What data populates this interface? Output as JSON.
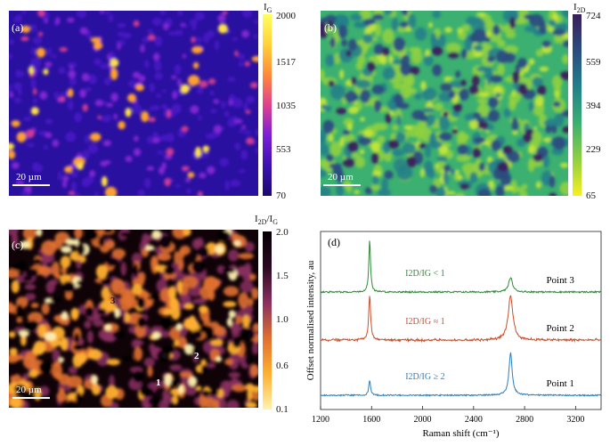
{
  "panels": {
    "a": {
      "label": "(a)",
      "scalebar": "20 µm",
      "cbar_title": "I",
      "cbar_sub": "G",
      "ticks": [
        "2000",
        "1517",
        "1035",
        "553",
        "70"
      ],
      "colors": [
        "#1a0a6e",
        "#3b10b0",
        "#7a1fd6",
        "#e0408f",
        "#ff8a3a",
        "#ffd23a",
        "#ffff60"
      ]
    },
    "b": {
      "label": "(b)",
      "scalebar": "20 µm",
      "cbar_title": "I",
      "cbar_sub": "2D",
      "ticks": [
        "724",
        "559",
        "394",
        "229",
        "65"
      ],
      "colors": [
        "#f8f020",
        "#8fd040",
        "#3bb070",
        "#22808a",
        "#2a4c80",
        "#3a1e5c"
      ]
    },
    "c": {
      "label": "(c)",
      "scalebar": "20 µm",
      "cbar_title": "I",
      "cbar_sub": "2D",
      "cbar_div": "/I",
      "cbar_sub2": "G",
      "ticks": [
        "2.0",
        "1.5",
        "1.0",
        "0.6",
        "0.1"
      ],
      "colors": [
        "#fff2b0",
        "#ffb030",
        "#e07030",
        "#8a3060",
        "#2a0820",
        "#050005"
      ],
      "points": [
        "1",
        "2",
        "3"
      ]
    }
  },
  "chart_data": {
    "type": "line",
    "panel_label": "(d)",
    "xlabel": "Raman shift (cm⁻¹)",
    "ylabel": "Offset normalised intensity, au",
    "xlim": [
      1200,
      3400
    ],
    "xticks": [
      "1200",
      "1600",
      "2000",
      "2400",
      "2800",
      "3200"
    ],
    "series": [
      {
        "name": "Point 3",
        "annotation": "I2D/IG < 1",
        "color": "#2e8b3a",
        "peaks": [
          {
            "center": 1585,
            "height": 1.0,
            "width": 8
          },
          {
            "center": 2690,
            "height": 0.28,
            "width": 18
          }
        ]
      },
      {
        "name": "Point 2",
        "annotation": "I2D/IG ≈ 1",
        "color": "#c8502a",
        "peaks": [
          {
            "center": 1585,
            "height": 1.0,
            "width": 9
          },
          {
            "center": 2690,
            "height": 1.0,
            "width": 22
          }
        ]
      },
      {
        "name": "Point 1",
        "annotation": "I2D/IG ≥ 2",
        "color": "#2a7fbf",
        "peaks": [
          {
            "center": 1585,
            "height": 0.35,
            "width": 8
          },
          {
            "center": 2690,
            "height": 1.0,
            "width": 15
          }
        ]
      }
    ]
  }
}
